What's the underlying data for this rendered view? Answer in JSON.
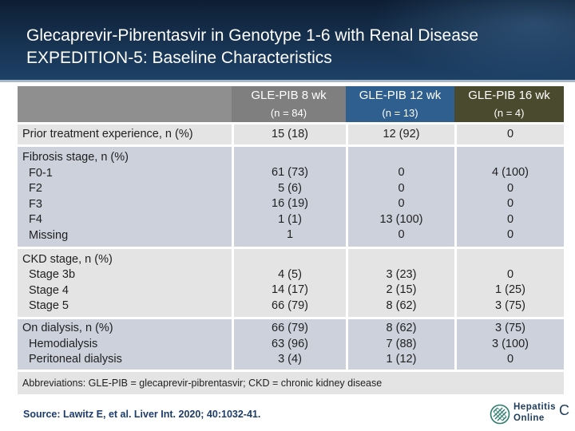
{
  "slide": {
    "title_line1": "Glecaprevir-Pibrentasvir in Genotype 1-6 with Renal Disease",
    "title_line2": "EXPEDITION-5: Baseline Characteristics"
  },
  "table": {
    "columns": [
      {
        "name": "GLE-PIB 8 wk",
        "n": "(n = 84)",
        "color": "#7f7f7f"
      },
      {
        "name": "GLE-PIB 12 wk",
        "n": "(n = 13)",
        "color": "#2e5f8e"
      },
      {
        "name": "GLE-PIB 16 wk",
        "n": "(n = 4)",
        "color": "#4a4a2e"
      }
    ],
    "rows": [
      {
        "label": [
          "Prior treatment experience, n (%)"
        ],
        "values": [
          [
            "15 (18)"
          ],
          [
            "12 (92)"
          ],
          [
            "0"
          ]
        ]
      },
      {
        "label": [
          "Fibrosis stage, n (%)",
          "F0-1",
          "F2",
          "F3",
          "F4",
          "Missing"
        ],
        "values": [
          [
            "61 (73)",
            "5 (6)",
            "16 (19)",
            "1 (1)",
            "1"
          ],
          [
            "0",
            "0",
            "0",
            "13 (100)",
            "0"
          ],
          [
            "4 (100)",
            "0",
            "0",
            "0",
            "0"
          ]
        ]
      },
      {
        "label": [
          "CKD stage, n (%)",
          "Stage 3b",
          "Stage 4",
          "Stage 5"
        ],
        "values": [
          [
            "4 (5)",
            "14 (17)",
            "66 (79)"
          ],
          [
            "3 (23)",
            "2 (15)",
            "8 (62)"
          ],
          [
            "0",
            "1 (25)",
            "3 (75)"
          ]
        ]
      },
      {
        "label": [
          "On dialysis, n (%)",
          "Hemodialysis",
          "Peritoneal dialysis"
        ],
        "values": [
          [
            "66 (79)",
            "63 (96)",
            "3 (4)"
          ],
          [
            "8 (62)",
            "7 (88)",
            "1 (12)"
          ],
          [
            "3 (75)",
            "3 (100)",
            "0"
          ]
        ]
      }
    ],
    "abbreviations": "Abbreviations: GLE-PIB = glecaprevir-pibrentasvir; CKD = chronic kidney disease"
  },
  "footer": {
    "source": "Source: Lawitz E, et al. Liver Int. 2020; 40:1032-41.",
    "logo_line1": "Hepatitis",
    "logo_line2": "Online",
    "logo_letter": "C",
    "logo_icon": "hepatitis-c-online-logo-icon"
  }
}
